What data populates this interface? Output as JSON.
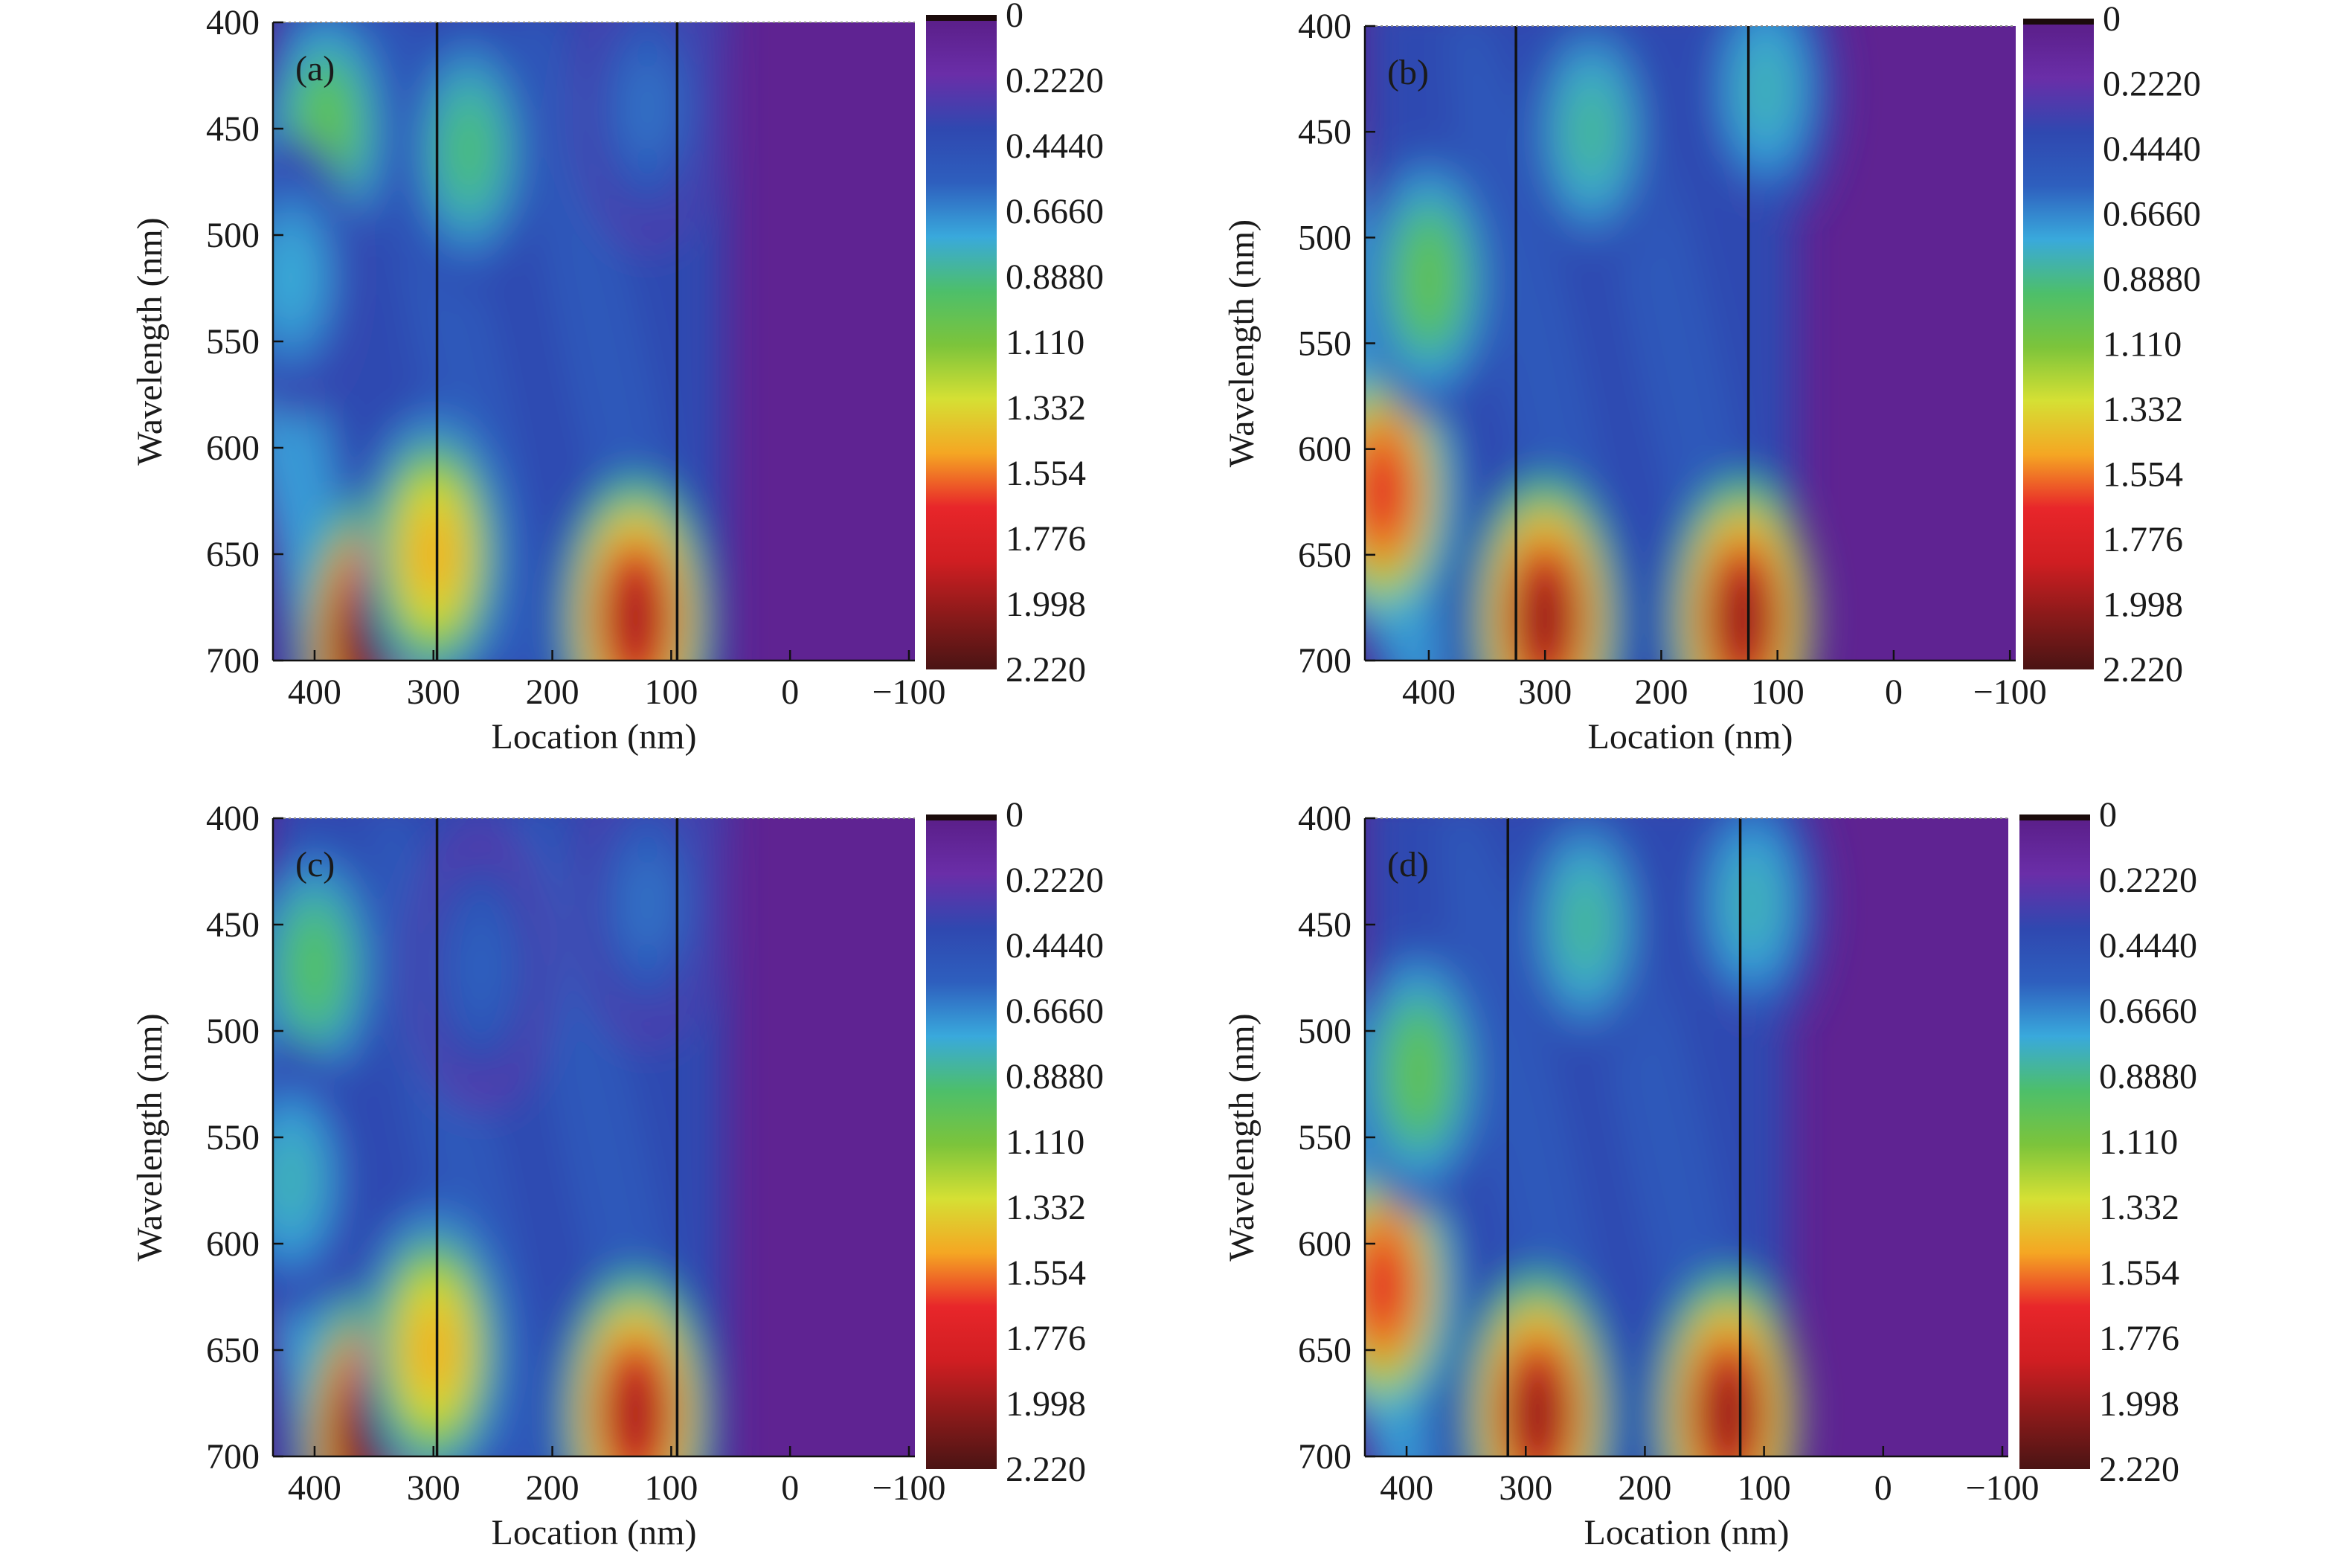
{
  "colorbar": {
    "tick_labels": [
      "0",
      "0.2220",
      "0.4440",
      "0.6660",
      "0.8880",
      "1.110",
      "1.332",
      "1.554",
      "1.776",
      "1.998",
      "2.220"
    ],
    "range": [
      0,
      2.22
    ],
    "colormap": [
      "#1b0b0b",
      "#5b1f8a",
      "#6a2ea8",
      "#2f48b0",
      "#2e5fbe",
      "#39a9dc",
      "#4dbf6a",
      "#7cc43b",
      "#d5e034",
      "#f5a623",
      "#e8262a",
      "#d01e22",
      "#8a1a1a",
      "#4a1414"
    ]
  },
  "chart_data": [
    {
      "type": "heatmap",
      "panel_label": "(a)",
      "xlabel": "Location (nm)",
      "ylabel": "Wavelength (nm)",
      "xlim": [
        435,
        -105
      ],
      "ylim": [
        400,
        700
      ],
      "x_ticks": [
        "400",
        "300",
        "200",
        "100",
        "0",
        "−100"
      ],
      "y_ticks": [
        "400",
        "450",
        "500",
        "550",
        "600",
        "650",
        "700"
      ],
      "boundary_lines_x": [
        297,
        95
      ],
      "value_range": [
        0,
        2.22
      ],
      "hotspots": [
        {
          "x": 350,
          "y": 690,
          "value": 2.2
        },
        {
          "x": 130,
          "y": 680,
          "value": 1.95
        },
        {
          "x": 300,
          "y": 650,
          "value": 1.45
        },
        {
          "x": 270,
          "y": 460,
          "value": 0.9
        },
        {
          "x": 120,
          "y": 440,
          "value": 0.6
        },
        {
          "x": 390,
          "y": 450,
          "value": 1.0
        },
        {
          "x": 420,
          "y": 520,
          "value": 0.75
        }
      ]
    },
    {
      "type": "heatmap",
      "panel_label": "(b)",
      "xlabel": "Location (nm)",
      "ylabel": "Wavelength (nm)",
      "xlim": [
        455,
        -105
      ],
      "ylim": [
        400,
        700
      ],
      "x_ticks": [
        "400",
        "300",
        "200",
        "100",
        "0",
        "−100"
      ],
      "y_ticks": [
        "400",
        "450",
        "500",
        "550",
        "600",
        "650",
        "700"
      ],
      "boundary_lines_x": [
        325,
        125
      ],
      "value_range": [
        0,
        2.22
      ],
      "hotspots": [
        {
          "x": 300,
          "y": 680,
          "value": 2.0
        },
        {
          "x": 130,
          "y": 680,
          "value": 2.0
        },
        {
          "x": 440,
          "y": 620,
          "value": 1.7
        },
        {
          "x": 400,
          "y": 520,
          "value": 1.0
        },
        {
          "x": 260,
          "y": 450,
          "value": 0.85
        },
        {
          "x": 110,
          "y": 430,
          "value": 0.8
        }
      ]
    },
    {
      "type": "heatmap",
      "panel_label": "(c)",
      "xlabel": "Location (nm)",
      "ylabel": "Wavelength (nm)",
      "xlim": [
        435,
        -105
      ],
      "ylim": [
        400,
        700
      ],
      "x_ticks": [
        "400",
        "300",
        "200",
        "100",
        "0",
        "−100"
      ],
      "y_ticks": [
        "400",
        "450",
        "500",
        "550",
        "600",
        "650",
        "700"
      ],
      "boundary_lines_x": [
        297,
        95
      ],
      "value_range": [
        0,
        2.22
      ],
      "hotspots": [
        {
          "x": 350,
          "y": 690,
          "value": 2.2
        },
        {
          "x": 130,
          "y": 680,
          "value": 1.95
        },
        {
          "x": 300,
          "y": 650,
          "value": 1.45
        },
        {
          "x": 260,
          "y": 470,
          "value": 0.55
        },
        {
          "x": 120,
          "y": 440,
          "value": 0.6
        },
        {
          "x": 400,
          "y": 470,
          "value": 0.95
        },
        {
          "x": 420,
          "y": 570,
          "value": 0.8
        }
      ]
    },
    {
      "type": "heatmap",
      "panel_label": "(d)",
      "xlabel": "Location (nm)",
      "ylabel": "Wavelength (nm)",
      "xlim": [
        435,
        -105
      ],
      "ylim": [
        400,
        700
      ],
      "x_ticks": [
        "400",
        "300",
        "200",
        "100",
        "0",
        "−100"
      ],
      "y_ticks": [
        "400",
        "450",
        "500",
        "550",
        "600",
        "650",
        "700"
      ],
      "boundary_lines_x": [
        315,
        120
      ],
      "value_range": [
        0,
        2.22
      ],
      "hotspots": [
        {
          "x": 290,
          "y": 680,
          "value": 2.0
        },
        {
          "x": 130,
          "y": 680,
          "value": 2.0
        },
        {
          "x": 420,
          "y": 620,
          "value": 1.7
        },
        {
          "x": 390,
          "y": 520,
          "value": 1.0
        },
        {
          "x": 250,
          "y": 450,
          "value": 0.85
        },
        {
          "x": 110,
          "y": 440,
          "value": 0.8
        }
      ]
    }
  ]
}
